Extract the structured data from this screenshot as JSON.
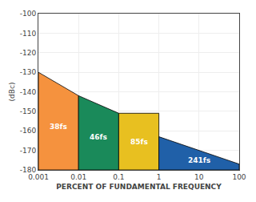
{
  "chart_data": {
    "type": "area",
    "xlabel": "PERCENT OF FUNDAMENTAL FREQUENCY",
    "ylabel": "(dBc)",
    "log": "x",
    "grid": true,
    "xlim": [
      0.001,
      100
    ],
    "xticks": [
      0.001,
      0.01,
      0.1,
      1,
      10,
      100
    ],
    "ylim": [
      -180,
      -100
    ],
    "yticks": [
      -180,
      -170,
      -160,
      -150,
      -140,
      -130,
      -120,
      -110,
      -100
    ],
    "baseline": -180,
    "series": [
      {
        "name": "38fs",
        "color": "#f5923e",
        "x": [
          0.001,
          0.01
        ],
        "values": [
          -130,
          -142
        ]
      },
      {
        "name": "46fs",
        "color": "#1a8a5a",
        "x": [
          0.01,
          0.1
        ],
        "values": [
          -142,
          -151
        ]
      },
      {
        "name": "85fs",
        "color": "#e8c020",
        "x": [
          0.1,
          1.0
        ],
        "values": [
          -151,
          -151
        ]
      },
      {
        "name": "241fs",
        "color": "#2060a8",
        "x": [
          1.0,
          100
        ],
        "values": [
          -163,
          -177
        ]
      }
    ]
  }
}
